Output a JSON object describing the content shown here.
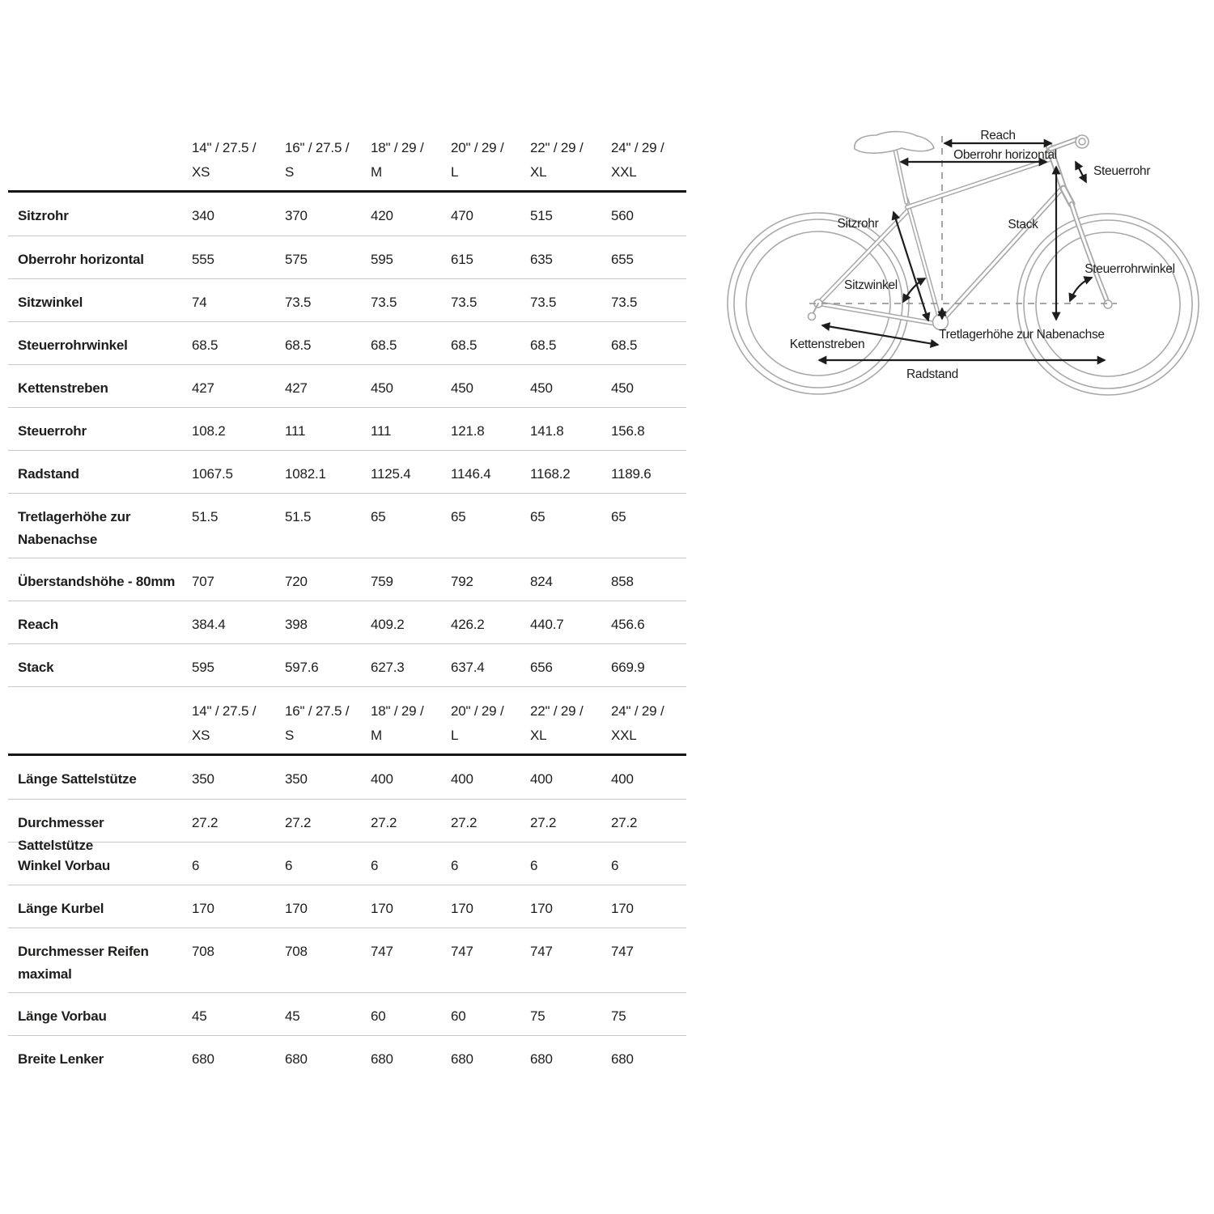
{
  "table": {
    "columns": [
      {
        "dim": "14\" / 27.5 /",
        "size": "XS"
      },
      {
        "dim": "16\" / 27.5 /",
        "size": "S"
      },
      {
        "dim": "18\" / 29 /",
        "size": "M"
      },
      {
        "dim": "20\" / 29 /",
        "size": "L"
      },
      {
        "dim": "22\" / 29 /",
        "size": "XL"
      },
      {
        "dim": "24\" / 29 /",
        "size": "XXL"
      }
    ],
    "sections": [
      {
        "name": "geometry",
        "rows": [
          {
            "label": "Sitzrohr",
            "values": [
              "340",
              "370",
              "420",
              "470",
              "515",
              "560"
            ]
          },
          {
            "label": "Oberrohr horizontal",
            "values": [
              "555",
              "575",
              "595",
              "615",
              "635",
              "655"
            ]
          },
          {
            "label": "Sitzwinkel",
            "values": [
              "74",
              "73.5",
              "73.5",
              "73.5",
              "73.5",
              "73.5"
            ]
          },
          {
            "label": "Steuerrohrwinkel",
            "values": [
              "68.5",
              "68.5",
              "68.5",
              "68.5",
              "68.5",
              "68.5"
            ]
          },
          {
            "label": "Kettenstreben",
            "values": [
              "427",
              "427",
              "450",
              "450",
              "450",
              "450"
            ]
          },
          {
            "label": "Steuerrohr",
            "values": [
              "108.2",
              "111",
              "111",
              "121.8",
              "141.8",
              "156.8"
            ]
          },
          {
            "label": "Radstand",
            "values": [
              "1067.5",
              "1082.1",
              "1125.4",
              "1146.4",
              "1168.2",
              "1189.6"
            ]
          },
          {
            "label": "Tretlagerhöhe zur Nabenachse",
            "values": [
              "51.5",
              "51.5",
              "65",
              "65",
              "65",
              "65"
            ],
            "tall": true
          },
          {
            "label": "Überstandshöhe - 80mm",
            "values": [
              "707",
              "720",
              "759",
              "792",
              "824",
              "858"
            ]
          },
          {
            "label": "Reach",
            "values": [
              "384.4",
              "398",
              "409.2",
              "426.2",
              "440.7",
              "456.6"
            ]
          },
          {
            "label": "Stack",
            "values": [
              "595",
              "597.6",
              "627.3",
              "637.4",
              "656",
              "669.9"
            ]
          }
        ]
      },
      {
        "name": "components",
        "rows": [
          {
            "label": "Länge Sattelstütze",
            "values": [
              "350",
              "350",
              "400",
              "400",
              "400",
              "400"
            ]
          },
          {
            "label": "Durchmesser Sattelstütze",
            "values": [
              "27.2",
              "27.2",
              "27.2",
              "27.2",
              "27.2",
              "27.2"
            ]
          },
          {
            "label": "Winkel Vorbau",
            "values": [
              "6",
              "6",
              "6",
              "6",
              "6",
              "6"
            ]
          },
          {
            "label": "Länge Kurbel",
            "values": [
              "170",
              "170",
              "170",
              "170",
              "170",
              "170"
            ]
          },
          {
            "label": "Durchmesser Reifen maximal",
            "values": [
              "708",
              "708",
              "747",
              "747",
              "747",
              "747"
            ],
            "tall": true
          },
          {
            "label": "Länge Vorbau",
            "values": [
              "45",
              "45",
              "60",
              "60",
              "75",
              "75"
            ]
          },
          {
            "label": "Breite Lenker",
            "values": [
              "680",
              "680",
              "680",
              "680",
              "680",
              "680"
            ]
          }
        ]
      }
    ]
  },
  "diagram": {
    "labels": {
      "reach": "Reach",
      "oberrohr_horizontal": "Oberrohr horizontal",
      "steuerrohr": "Steuerrohr",
      "sitzrohr": "Sitzrohr",
      "stack": "Stack",
      "steuerrohrwinkel": "Steuerrohrwinkel",
      "sitzwinkel": "Sitzwinkel",
      "kettenstreben": "Kettenstreben",
      "tretlagerhoehe": "Tretlagerhöhe zur Nabenachse",
      "radstand": "Radstand"
    },
    "colors": {
      "outline": "#a9a9a9",
      "annotation": "#1d1d1b"
    }
  }
}
